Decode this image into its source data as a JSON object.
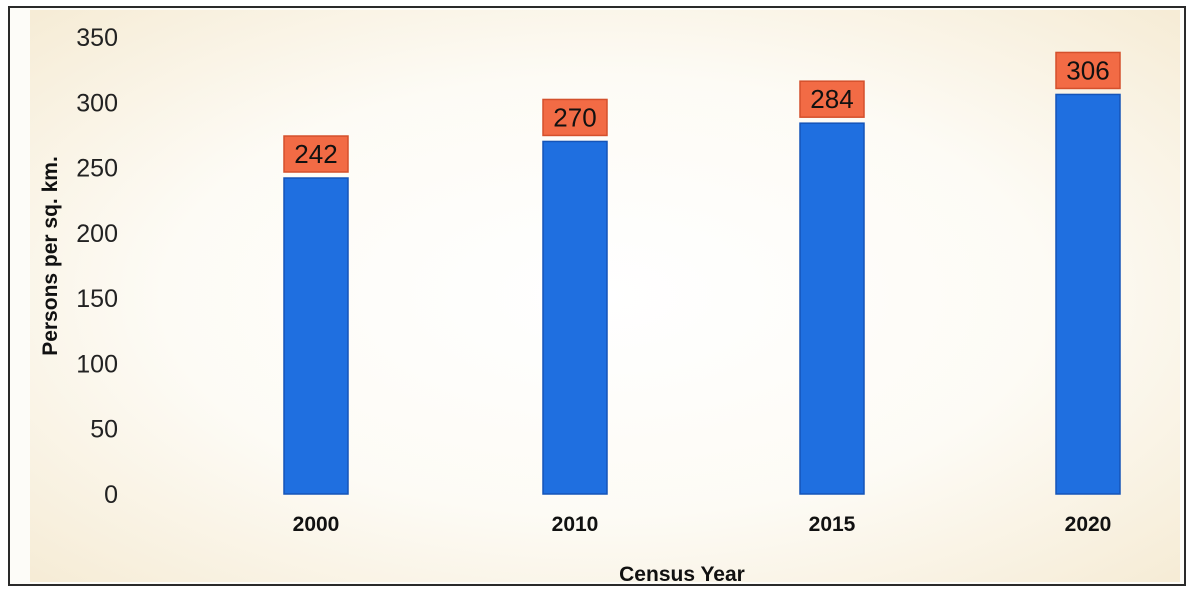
{
  "chart_data": {
    "type": "bar",
    "title": "",
    "xlabel": "Census Year",
    "ylabel": "Persons per sq. km.",
    "categories": [
      "2000",
      "2010",
      "2015",
      "2020"
    ],
    "values": [
      242,
      270,
      284,
      306
    ],
    "data_labels": [
      "242",
      "270",
      "284",
      "306"
    ],
    "yticks": [
      "0",
      "50",
      "100",
      "150",
      "200",
      "250",
      "300",
      "350"
    ],
    "ylim": [
      0,
      350
    ],
    "grid": false,
    "legend": "none",
    "colors": {
      "bar": "#1f6fe0",
      "bar_edge": "#1554b8",
      "label_box": "#f26b45",
      "label_box_edge": "#d4502c",
      "plot_bg_center": "#ffffff",
      "plot_bg_edge": "#f6ecd6"
    }
  }
}
